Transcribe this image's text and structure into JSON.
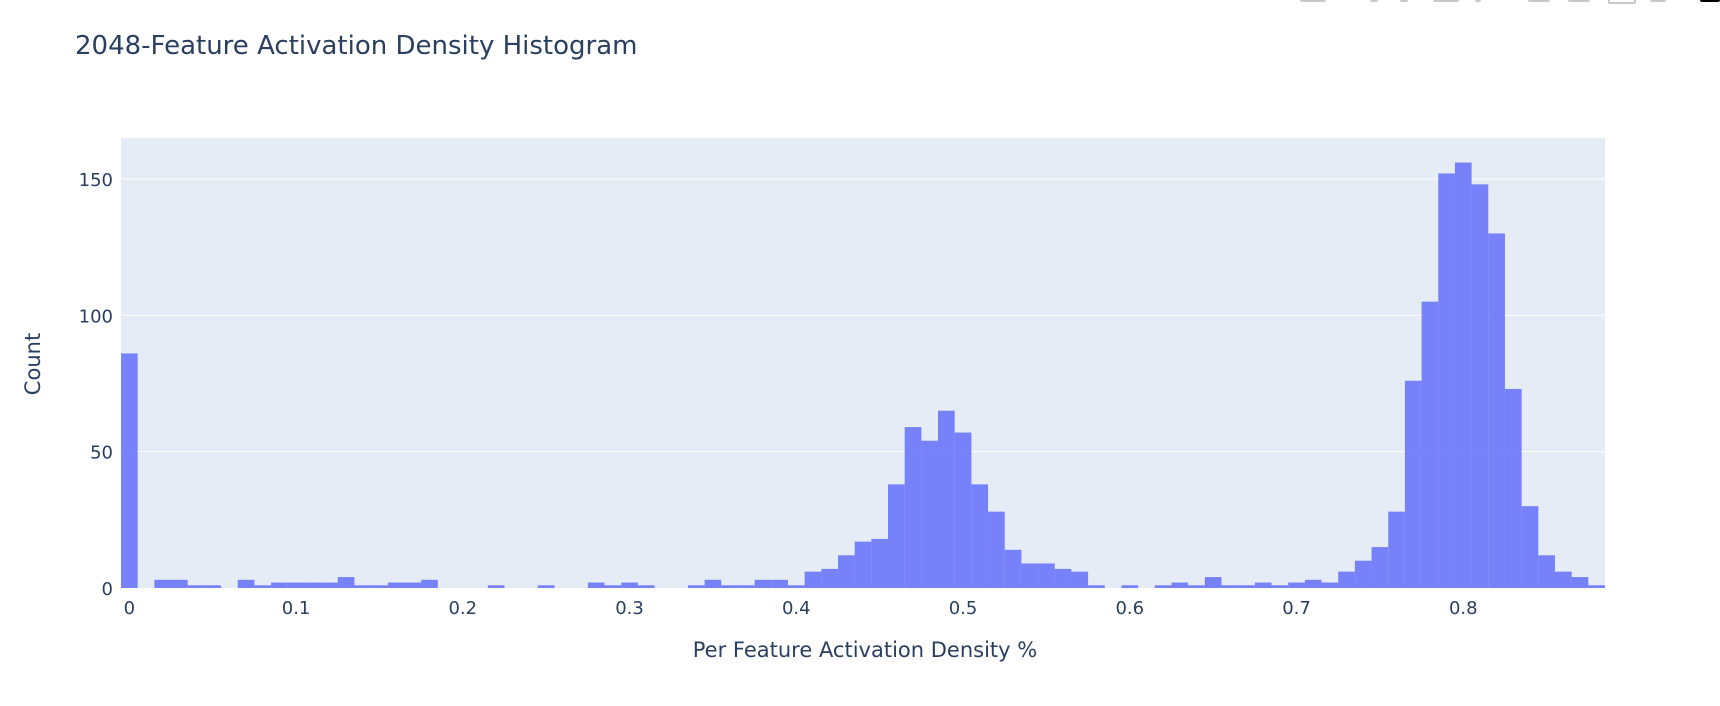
{
  "chart_data": {
    "type": "bar",
    "title": "2048-Feature Activation Density Histogram",
    "xlabel": "Per Feature Activation Density %",
    "ylabel": "Count",
    "bin_width": 0.01,
    "bin_centers_start": 0,
    "xlim": [
      -0.005,
      0.885
    ],
    "ylim": [
      0,
      165
    ],
    "x_ticks": [
      0,
      0.1,
      0.2,
      0.3,
      0.4,
      0.5,
      0.6,
      0.7,
      0.8
    ],
    "x_tick_labels": [
      "0",
      "0.1",
      "0.2",
      "0.3",
      "0.4",
      "0.5",
      "0.6",
      "0.7",
      "0.8"
    ],
    "y_ticks": [
      0,
      50,
      100,
      150
    ],
    "y_tick_labels": [
      "0",
      "50",
      "100",
      "150"
    ],
    "grid": true,
    "bar_color": "#636efa",
    "plot_bg": "#e5ecf6",
    "values": [
      86,
      0,
      3,
      3,
      1,
      1,
      0,
      3,
      1,
      2,
      2,
      2,
      2,
      4,
      1,
      1,
      2,
      2,
      3,
      0,
      0,
      0,
      1,
      0,
      0,
      1,
      0,
      0,
      2,
      1,
      2,
      1,
      0,
      0,
      1,
      3,
      1,
      1,
      3,
      3,
      1,
      6,
      7,
      12,
      17,
      18,
      38,
      59,
      54,
      65,
      57,
      38,
      28,
      14,
      9,
      9,
      7,
      6,
      1,
      0,
      1,
      0,
      1,
      2,
      1,
      4,
      1,
      1,
      2,
      1,
      2,
      3,
      2,
      6,
      10,
      15,
      28,
      76,
      105,
      152,
      156,
      148,
      130,
      73,
      30,
      12,
      6,
      4,
      1
    ]
  },
  "modebar": {
    "icons": [
      "camera-icon",
      "zoom-icon",
      "pan-icon",
      "box-select-icon",
      "lasso-icon",
      "zoom-in-icon",
      "zoom-out-icon",
      "autoscale-icon",
      "reset-axes-icon",
      "plotly-logo-icon"
    ]
  }
}
